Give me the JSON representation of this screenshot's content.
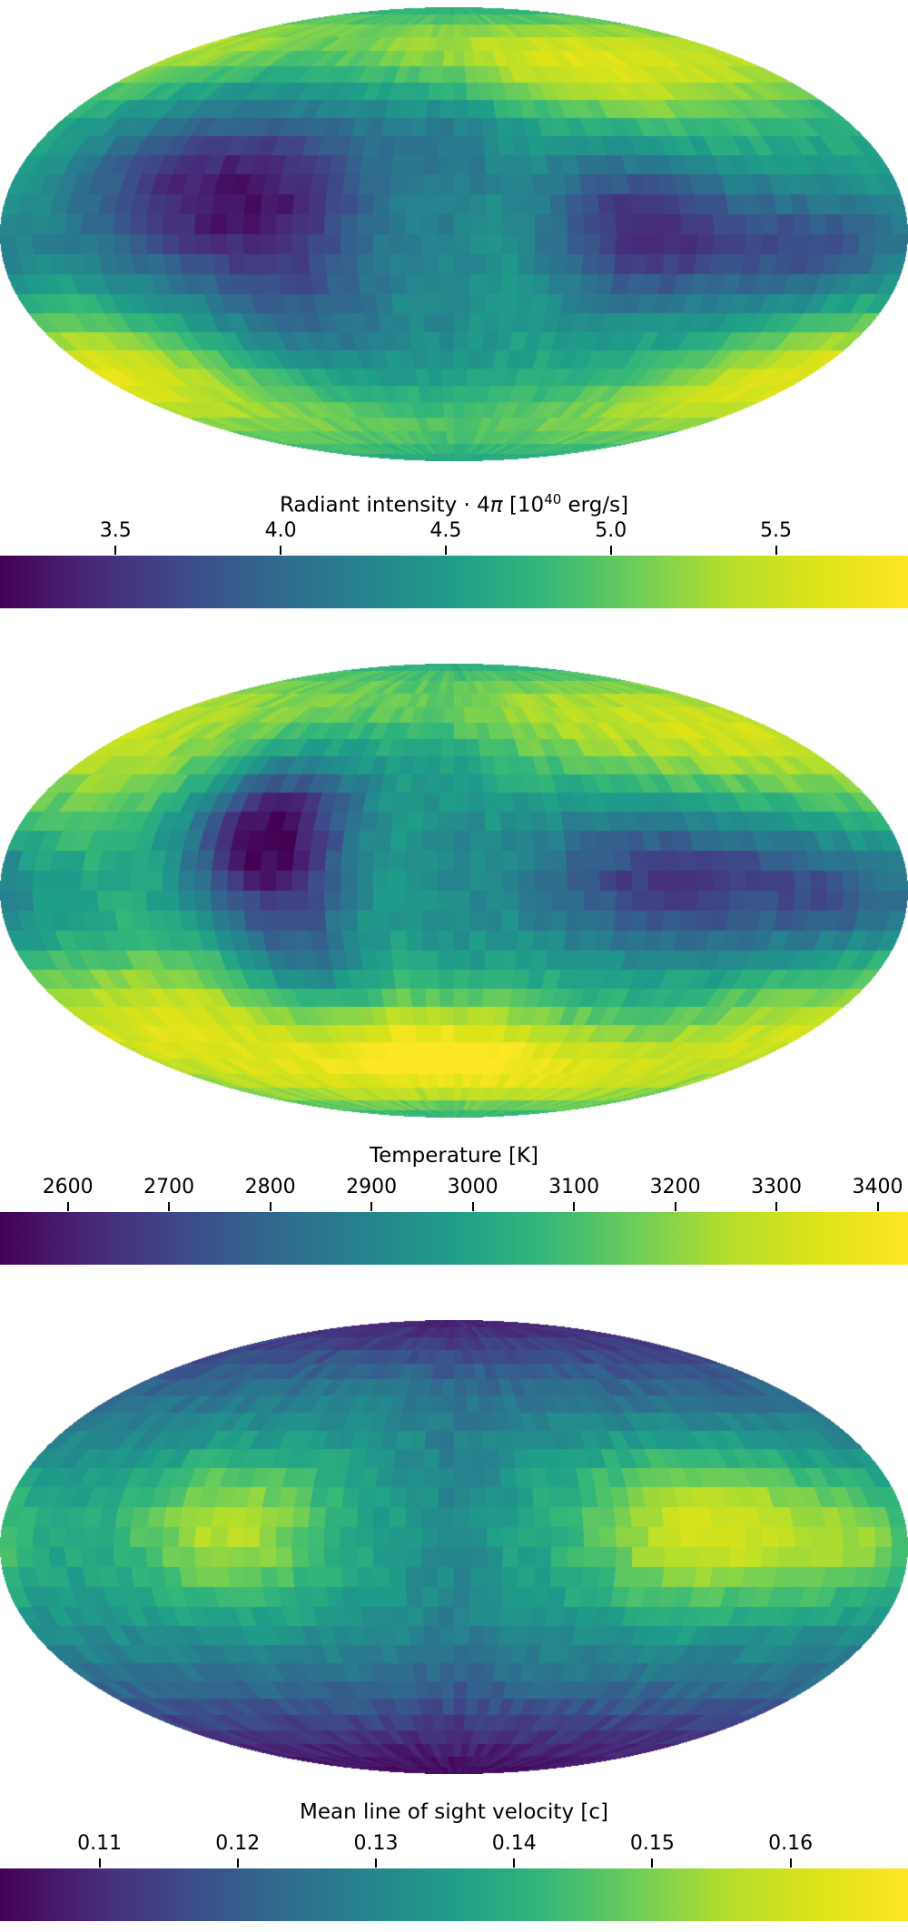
{
  "figure": {
    "background": "#ffffff",
    "text_color": "#000000",
    "projection": "mollweide",
    "colormap_name": "viridis"
  },
  "colormap": {
    "name": "viridis",
    "stops": [
      "#440154",
      "#482878",
      "#3e4989",
      "#31688e",
      "#26828e",
      "#1f9e89",
      "#35b779",
      "#6dcd59",
      "#b4de2c",
      "#dde318",
      "#fde725"
    ]
  },
  "chart_data": [
    {
      "type": "heatmap",
      "projection": "mollweide",
      "colormap": "viridis",
      "title": {
        "plain": "Radiant intensity · 4π [10^40 erg/s]",
        "pre": "Radiant intensity · 4",
        "pi": "π",
        "mid": " [10",
        "sup": "40",
        "post": " erg/s]"
      },
      "colorbar": {
        "orientation": "horizontal",
        "range": [
          3.15,
          5.9
        ],
        "tick_labels": [
          "3.5",
          "4.0",
          "4.5",
          "5.0",
          "5.5"
        ],
        "tick_values": [
          3.5,
          4.0,
          4.5,
          5.0,
          5.5
        ]
      },
      "field": {
        "base": 4.55,
        "noise": 0.09,
        "blobs": [
          {
            "lon": -95,
            "lat": 14,
            "slon": 42,
            "slat": 20,
            "amp": -1.15
          },
          {
            "lon": -65,
            "lat": -20,
            "slon": 28,
            "slat": 24,
            "amp": -0.55
          },
          {
            "lon": 72,
            "lat": 2,
            "slon": 26,
            "slat": 17,
            "amp": -0.95
          },
          {
            "lon": 140,
            "lat": -4,
            "slon": 40,
            "slat": 13,
            "amp": -0.8
          },
          {
            "lon": 88,
            "lat": 57,
            "slon": 50,
            "slat": 16,
            "amp": 1.1
          },
          {
            "lon": -152,
            "lat": -46,
            "slon": 38,
            "slat": 16,
            "amp": 0.7
          },
          {
            "lon": 158,
            "lat": -50,
            "slon": 32,
            "slat": 14,
            "amp": 0.55
          },
          {
            "lon": -45,
            "lat": 63,
            "slon": 55,
            "slat": 15,
            "amp": 0.3
          },
          {
            "lon": 2,
            "lat": -66,
            "slon": 50,
            "slat": 14,
            "amp": 0.35
          },
          {
            "lon": 0,
            "lat": 8,
            "slon": 11,
            "slat": 50,
            "amp": -0.18
          },
          {
            "lon": -173,
            "lat": 5,
            "slon": 18,
            "slat": 25,
            "amp": 0.25
          },
          {
            "lon": 10,
            "lat": 45,
            "slon": 45,
            "slat": 20,
            "amp": -0.25
          }
        ]
      }
    },
    {
      "type": "heatmap",
      "projection": "mollweide",
      "colormap": "viridis",
      "title": {
        "plain": "Temperature [K]",
        "pre": "Temperature [K]"
      },
      "colorbar": {
        "orientation": "horizontal",
        "range": [
          2533,
          3430
        ],
        "tick_labels": [
          "2600",
          "2700",
          "2800",
          "2900",
          "3000",
          "3100",
          "3200",
          "3300",
          "3400"
        ],
        "tick_values": [
          2600,
          2700,
          2800,
          2900,
          3000,
          3100,
          3200,
          3300,
          3400
        ]
      },
      "field": {
        "base": 3020,
        "noise": 35,
        "blobs": [
          {
            "lon": -78,
            "lat": 20,
            "slon": 22,
            "slat": 17,
            "amp": -430
          },
          {
            "lon": -65,
            "lat": -18,
            "slon": 20,
            "slat": 28,
            "amp": -240
          },
          {
            "lon": 85,
            "lat": 3,
            "slon": 42,
            "slat": 17,
            "amp": -350
          },
          {
            "lon": 158,
            "lat": -2,
            "slon": 28,
            "slat": 13,
            "amp": -190
          },
          {
            "lon": -8,
            "lat": -58,
            "slon": 40,
            "slat": 15,
            "amp": 430
          },
          {
            "lon": -118,
            "lat": -42,
            "slon": 42,
            "slat": 16,
            "amp": 270
          },
          {
            "lon": 128,
            "lat": 52,
            "slon": 48,
            "slat": 17,
            "amp": 210
          },
          {
            "lon": -145,
            "lat": 40,
            "slon": 38,
            "slat": 18,
            "amp": 140
          },
          {
            "lon": 152,
            "lat": -48,
            "slon": 32,
            "slat": 14,
            "amp": 170
          },
          {
            "lon": 0,
            "lat": 10,
            "slon": 11,
            "slat": 50,
            "amp": -60
          },
          {
            "lon": 35,
            "lat": 65,
            "slon": 60,
            "slat": 14,
            "amp": 80
          }
        ]
      }
    },
    {
      "type": "heatmap",
      "projection": "mollweide",
      "colormap": "viridis",
      "title": {
        "plain": "Mean line of sight velocity [c]",
        "pre": "Mean line of sight velocity [c]"
      },
      "colorbar": {
        "orientation": "horizontal",
        "range": [
          0.1028,
          0.1685
        ],
        "tick_labels": [
          "0.11",
          "0.12",
          "0.13",
          "0.14",
          "0.15",
          "0.16"
        ],
        "tick_values": [
          0.11,
          0.12,
          0.13,
          0.14,
          0.15,
          0.16
        ]
      },
      "field": {
        "base": 0.1365,
        "noise": 0.0024,
        "blobs": [
          {
            "lon": 0,
            "lat": 90,
            "slon": 99999,
            "slat": 34,
            "amp": -0.027
          },
          {
            "lon": 0,
            "lat": -90,
            "slon": 99999,
            "slat": 34,
            "amp": -0.031
          },
          {
            "lon": -90,
            "lat": 6,
            "slon": 28,
            "slat": 18,
            "amp": 0.021
          },
          {
            "lon": 100,
            "lat": 6,
            "slon": 34,
            "slat": 18,
            "amp": 0.026
          },
          {
            "lon": 160,
            "lat": 2,
            "slon": 22,
            "slat": 13,
            "amp": 0.013
          },
          {
            "lon": 0,
            "lat": 0,
            "slon": 12,
            "slat": 45,
            "amp": -0.004
          },
          {
            "lon": -40,
            "lat": 55,
            "slon": 40,
            "slat": 15,
            "amp": 0.005
          }
        ]
      }
    }
  ]
}
